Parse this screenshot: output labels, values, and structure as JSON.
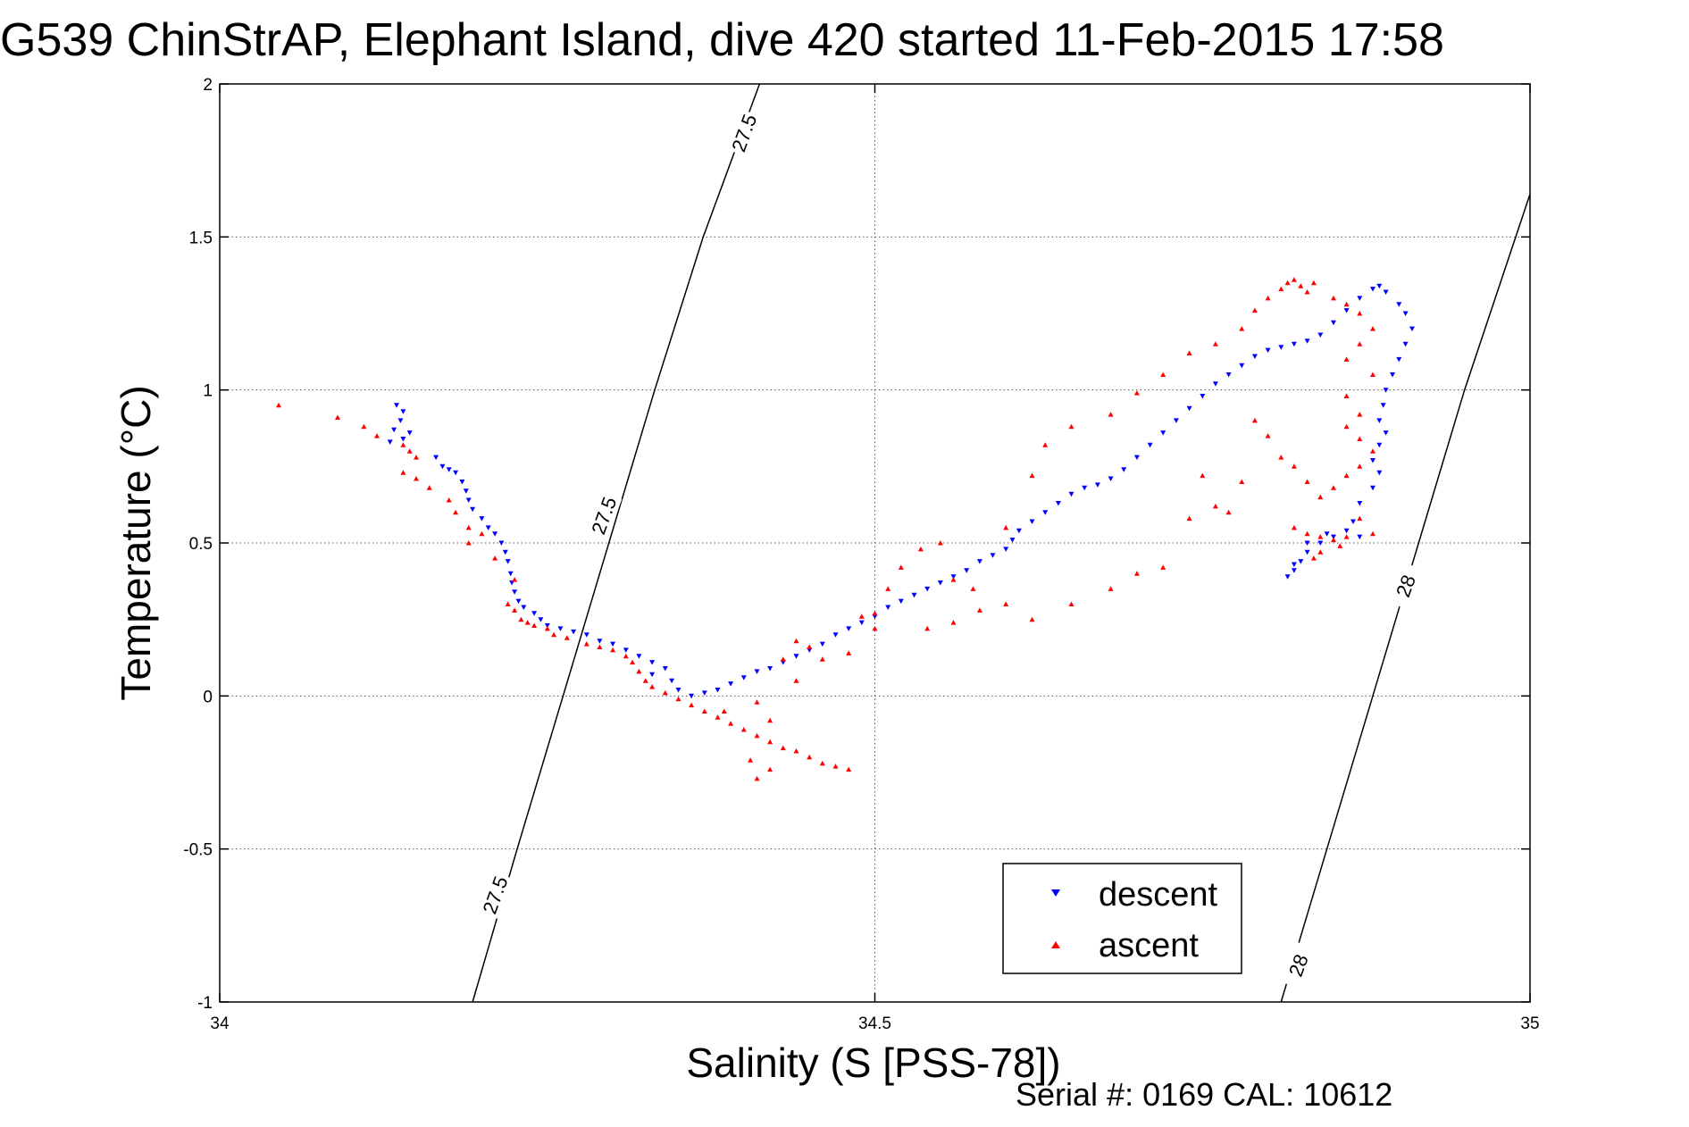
{
  "figure": {
    "title": "G539 ChinStrAP, Elephant Island, dive 420 started 11-Feb-2015 17:58",
    "footer": "Serial #: 0169 CAL: 10612"
  },
  "chart_data": {
    "type": "scatter",
    "title": "G539 ChinStrAP, Elephant Island, dive 420 started 11-Feb-2015 17:58",
    "xlabel": "Salinity (S [PSS-78])",
    "ylabel": "Temperature (°C)",
    "xlim": [
      34,
      35
    ],
    "ylim": [
      -1,
      2
    ],
    "xticks": [
      "34",
      "34.5",
      "35"
    ],
    "yticks": [
      "-1",
      "-0.5",
      "0",
      "0.5",
      "1",
      "1.5",
      "2"
    ],
    "grid": true,
    "legend_position": "lower-right",
    "series": [
      {
        "name": "descent",
        "color": "#0000ff",
        "marker": "triangle-down",
        "points": [
          [
            34.135,
            0.95
          ],
          [
            34.14,
            0.93
          ],
          [
            34.138,
            0.9
          ],
          [
            34.133,
            0.87
          ],
          [
            34.14,
            0.84
          ],
          [
            34.13,
            0.83
          ],
          [
            34.145,
            0.86
          ],
          [
            34.165,
            0.78
          ],
          [
            34.17,
            0.75
          ],
          [
            34.175,
            0.74
          ],
          [
            34.18,
            0.73
          ],
          [
            34.185,
            0.7
          ],
          [
            34.188,
            0.67
          ],
          [
            34.19,
            0.64
          ],
          [
            34.193,
            0.61
          ],
          [
            34.2,
            0.58
          ],
          [
            34.205,
            0.55
          ],
          [
            34.21,
            0.53
          ],
          [
            34.215,
            0.5
          ],
          [
            34.218,
            0.47
          ],
          [
            34.22,
            0.44
          ],
          [
            34.222,
            0.4
          ],
          [
            34.223,
            0.37
          ],
          [
            34.225,
            0.34
          ],
          [
            34.228,
            0.31
          ],
          [
            34.232,
            0.29
          ],
          [
            34.24,
            0.27
          ],
          [
            34.245,
            0.25
          ],
          [
            34.25,
            0.23
          ],
          [
            34.26,
            0.22
          ],
          [
            34.27,
            0.21
          ],
          [
            34.28,
            0.2
          ],
          [
            34.29,
            0.18
          ],
          [
            34.3,
            0.17
          ],
          [
            34.31,
            0.15
          ],
          [
            34.32,
            0.13
          ],
          [
            34.33,
            0.11
          ],
          [
            34.34,
            0.09
          ],
          [
            34.33,
            0.07
          ],
          [
            34.345,
            0.05
          ],
          [
            34.35,
            0.02
          ],
          [
            34.36,
            0.0
          ],
          [
            34.37,
            0.01
          ],
          [
            34.38,
            0.02
          ],
          [
            34.39,
            0.04
          ],
          [
            34.4,
            0.06
          ],
          [
            34.41,
            0.08
          ],
          [
            34.42,
            0.09
          ],
          [
            34.43,
            0.11
          ],
          [
            34.44,
            0.13
          ],
          [
            34.45,
            0.15
          ],
          [
            34.46,
            0.17
          ],
          [
            34.47,
            0.2
          ],
          [
            34.48,
            0.22
          ],
          [
            34.49,
            0.24
          ],
          [
            34.5,
            0.26
          ],
          [
            34.51,
            0.29
          ],
          [
            34.52,
            0.31
          ],
          [
            34.53,
            0.33
          ],
          [
            34.54,
            0.35
          ],
          [
            34.55,
            0.37
          ],
          [
            34.56,
            0.39
          ],
          [
            34.57,
            0.41
          ],
          [
            34.58,
            0.44
          ],
          [
            34.59,
            0.46
          ],
          [
            34.6,
            0.48
          ],
          [
            34.605,
            0.51
          ],
          [
            34.61,
            0.54
          ],
          [
            34.62,
            0.57
          ],
          [
            34.63,
            0.6
          ],
          [
            34.64,
            0.63
          ],
          [
            34.65,
            0.66
          ],
          [
            34.66,
            0.68
          ],
          [
            34.67,
            0.69
          ],
          [
            34.68,
            0.71
          ],
          [
            34.69,
            0.74
          ],
          [
            34.7,
            0.78
          ],
          [
            34.71,
            0.82
          ],
          [
            34.72,
            0.86
          ],
          [
            34.73,
            0.9
          ],
          [
            34.74,
            0.94
          ],
          [
            34.75,
            0.98
          ],
          [
            34.76,
            1.02
          ],
          [
            34.77,
            1.05
          ],
          [
            34.78,
            1.08
          ],
          [
            34.79,
            1.11
          ],
          [
            34.8,
            1.13
          ],
          [
            34.81,
            1.14
          ],
          [
            34.82,
            1.15
          ],
          [
            34.83,
            1.16
          ],
          [
            34.84,
            1.18
          ],
          [
            34.85,
            1.22
          ],
          [
            34.86,
            1.26
          ],
          [
            34.87,
            1.3
          ],
          [
            34.88,
            1.33
          ],
          [
            34.885,
            1.34
          ],
          [
            34.89,
            1.32
          ],
          [
            34.9,
            1.28
          ],
          [
            34.905,
            1.25
          ],
          [
            34.91,
            1.2
          ],
          [
            34.905,
            1.15
          ],
          [
            34.9,
            1.1
          ],
          [
            34.895,
            1.05
          ],
          [
            34.89,
            1.0
          ],
          [
            34.888,
            0.95
          ],
          [
            34.885,
            0.9
          ],
          [
            34.89,
            0.86
          ],
          [
            34.885,
            0.82
          ],
          [
            34.88,
            0.77
          ],
          [
            34.885,
            0.73
          ],
          [
            34.88,
            0.68
          ],
          [
            34.87,
            0.63
          ],
          [
            34.865,
            0.57
          ],
          [
            34.86,
            0.54
          ],
          [
            34.85,
            0.52
          ],
          [
            34.84,
            0.5
          ],
          [
            34.83,
            0.47
          ],
          [
            34.825,
            0.44
          ],
          [
            34.82,
            0.41
          ],
          [
            34.815,
            0.39
          ],
          [
            34.82,
            0.43
          ],
          [
            34.83,
            0.5
          ],
          [
            34.845,
            0.53
          ],
          [
            34.87,
            0.52
          ]
        ]
      },
      {
        "name": "ascent",
        "color": "#ff0000",
        "marker": "triangle-up",
        "points": [
          [
            34.045,
            0.95
          ],
          [
            34.09,
            0.91
          ],
          [
            34.11,
            0.88
          ],
          [
            34.12,
            0.85
          ],
          [
            34.14,
            0.82
          ],
          [
            34.145,
            0.8
          ],
          [
            34.15,
            0.78
          ],
          [
            34.14,
            0.73
          ],
          [
            34.15,
            0.71
          ],
          [
            34.16,
            0.68
          ],
          [
            34.175,
            0.64
          ],
          [
            34.18,
            0.6
          ],
          [
            34.19,
            0.55
          ],
          [
            34.2,
            0.53
          ],
          [
            34.19,
            0.5
          ],
          [
            34.21,
            0.45
          ],
          [
            34.225,
            0.38
          ],
          [
            34.22,
            0.3
          ],
          [
            34.225,
            0.28
          ],
          [
            34.23,
            0.25
          ],
          [
            34.235,
            0.24
          ],
          [
            34.24,
            0.23
          ],
          [
            34.25,
            0.22
          ],
          [
            34.255,
            0.2
          ],
          [
            34.265,
            0.19
          ],
          [
            34.28,
            0.17
          ],
          [
            34.29,
            0.16
          ],
          [
            34.3,
            0.15
          ],
          [
            34.31,
            0.13
          ],
          [
            34.315,
            0.11
          ],
          [
            34.32,
            0.08
          ],
          [
            34.325,
            0.05
          ],
          [
            34.33,
            0.03
          ],
          [
            34.34,
            0.01
          ],
          [
            34.35,
            -0.01
          ],
          [
            34.36,
            -0.03
          ],
          [
            34.37,
            -0.05
          ],
          [
            34.38,
            -0.07
          ],
          [
            34.39,
            -0.09
          ],
          [
            34.4,
            -0.11
          ],
          [
            34.41,
            -0.13
          ],
          [
            34.42,
            -0.15
          ],
          [
            34.43,
            -0.17
          ],
          [
            34.44,
            -0.18
          ],
          [
            34.45,
            -0.2
          ],
          [
            34.46,
            -0.22
          ],
          [
            34.47,
            -0.23
          ],
          [
            34.48,
            -0.24
          ],
          [
            34.42,
            -0.24
          ],
          [
            34.41,
            -0.27
          ],
          [
            34.405,
            -0.21
          ],
          [
            34.42,
            -0.08
          ],
          [
            34.41,
            -0.02
          ],
          [
            34.385,
            -0.05
          ],
          [
            34.43,
            0.12
          ],
          [
            34.44,
            0.18
          ],
          [
            34.45,
            0.16
          ],
          [
            34.46,
            0.12
          ],
          [
            34.5,
            0.22
          ],
          [
            34.5,
            0.27
          ],
          [
            34.51,
            0.35
          ],
          [
            34.52,
            0.42
          ],
          [
            34.535,
            0.48
          ],
          [
            34.55,
            0.5
          ],
          [
            34.56,
            0.38
          ],
          [
            34.575,
            0.35
          ],
          [
            34.6,
            0.55
          ],
          [
            34.62,
            0.72
          ],
          [
            34.63,
            0.82
          ],
          [
            34.65,
            0.88
          ],
          [
            34.68,
            0.92
          ],
          [
            34.7,
            0.99
          ],
          [
            34.72,
            1.05
          ],
          [
            34.74,
            1.12
          ],
          [
            34.76,
            1.15
          ],
          [
            34.78,
            1.2
          ],
          [
            34.79,
            1.26
          ],
          [
            34.8,
            1.3
          ],
          [
            34.81,
            1.33
          ],
          [
            34.815,
            1.35
          ],
          [
            34.82,
            1.36
          ],
          [
            34.825,
            1.34
          ],
          [
            34.83,
            1.32
          ],
          [
            34.835,
            1.35
          ],
          [
            34.85,
            1.3
          ],
          [
            34.86,
            1.28
          ],
          [
            34.87,
            1.25
          ],
          [
            34.88,
            1.2
          ],
          [
            34.87,
            1.15
          ],
          [
            34.86,
            1.1
          ],
          [
            34.88,
            1.05
          ],
          [
            34.86,
            0.98
          ],
          [
            34.87,
            0.92
          ],
          [
            34.86,
            0.88
          ],
          [
            34.87,
            0.84
          ],
          [
            34.88,
            0.8
          ],
          [
            34.87,
            0.75
          ],
          [
            34.86,
            0.72
          ],
          [
            34.85,
            0.68
          ],
          [
            34.84,
            0.65
          ],
          [
            34.83,
            0.7
          ],
          [
            34.82,
            0.75
          ],
          [
            34.81,
            0.78
          ],
          [
            34.8,
            0.85
          ],
          [
            34.79,
            0.9
          ],
          [
            34.78,
            0.7
          ],
          [
            34.75,
            0.72
          ],
          [
            34.76,
            0.62
          ],
          [
            34.77,
            0.6
          ],
          [
            34.82,
            0.55
          ],
          [
            34.83,
            0.53
          ],
          [
            34.84,
            0.52
          ],
          [
            34.85,
            0.51
          ],
          [
            34.86,
            0.52
          ],
          [
            34.855,
            0.49
          ],
          [
            34.84,
            0.47
          ],
          [
            34.835,
            0.45
          ],
          [
            34.87,
            0.58
          ],
          [
            34.88,
            0.53
          ],
          [
            34.74,
            0.58
          ],
          [
            34.72,
            0.42
          ],
          [
            34.7,
            0.4
          ],
          [
            34.68,
            0.35
          ],
          [
            34.65,
            0.3
          ],
          [
            34.62,
            0.25
          ],
          [
            34.6,
            0.3
          ],
          [
            34.58,
            0.28
          ],
          [
            34.56,
            0.24
          ],
          [
            34.54,
            0.22
          ],
          [
            34.49,
            0.26
          ],
          [
            34.48,
            0.14
          ],
          [
            34.44,
            0.05
          ]
        ]
      }
    ],
    "isopycnals": [
      {
        "label": "27.5",
        "points": [
          [
            34.193,
            -1.0
          ],
          [
            34.227,
            -0.5
          ],
          [
            34.262,
            0.0
          ],
          [
            34.297,
            0.5
          ],
          [
            34.332,
            1.0
          ],
          [
            34.369,
            1.5
          ],
          [
            34.412,
            2.0
          ]
        ]
      },
      {
        "label": "28",
        "points": [
          [
            34.81,
            -1.0
          ],
          [
            34.845,
            -0.5
          ],
          [
            34.88,
            0.0
          ],
          [
            34.915,
            0.5
          ],
          [
            34.95,
            1.0
          ],
          [
            35.0,
            1.64
          ]
        ]
      }
    ],
    "isopycnal_labels": [
      {
        "text": "27.5",
        "s": 34.4,
        "t": 1.84
      },
      {
        "text": "27.5",
        "s": 34.293,
        "t": 0.59
      },
      {
        "text": "27.5",
        "s": 34.21,
        "t": -0.65
      },
      {
        "text": "28",
        "s": 34.905,
        "t": 0.36
      },
      {
        "text": "28",
        "s": 34.823,
        "t": -0.88
      }
    ]
  }
}
